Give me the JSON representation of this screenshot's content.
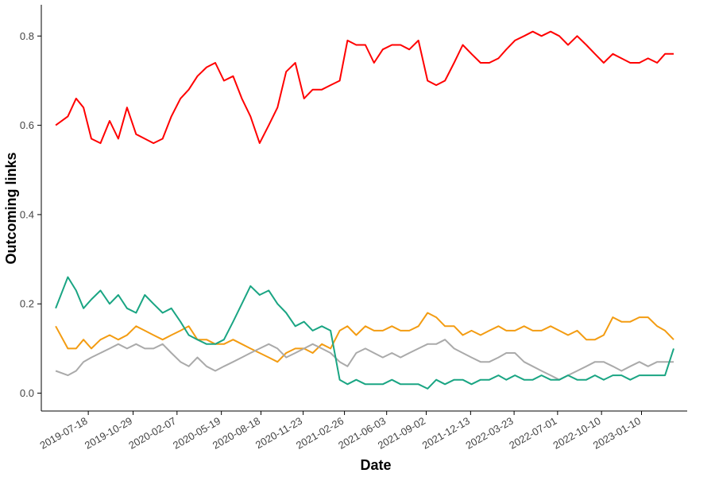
{
  "chart_data": {
    "type": "line",
    "xlabel": "Date",
    "ylabel": "Outcoming links",
    "x_ticks": [
      "2019-07-18",
      "2019-10-29",
      "2020-02-07",
      "2020-05-19",
      "2020-08-18",
      "2020-11-23",
      "2021-02-26",
      "2021-06-03",
      "2021-09-02",
      "2021-12-13",
      "2022-03-23",
      "2022-07-01",
      "2022-10-10",
      "2023-01-10"
    ],
    "y_ticks": [
      0.0,
      0.2,
      0.4,
      0.6,
      0.8
    ],
    "ylim": [
      -0.04,
      0.87
    ],
    "xlim": [
      "2019-04-01",
      "2023-04-25"
    ],
    "grid": false,
    "series": [
      {
        "color": "#ff0000",
        "x": [
          "2019-05-04",
          "2019-06-01",
          "2019-06-20",
          "2019-07-07",
          "2019-07-25",
          "2019-08-15",
          "2019-09-05",
          "2019-09-25",
          "2019-10-15",
          "2019-11-05",
          "2019-11-25",
          "2019-12-15",
          "2020-01-05",
          "2020-01-25",
          "2020-02-15",
          "2020-03-05",
          "2020-03-25",
          "2020-04-15",
          "2020-05-05",
          "2020-05-25",
          "2020-06-15",
          "2020-07-05",
          "2020-07-25",
          "2020-08-15",
          "2020-09-05",
          "2020-09-25",
          "2020-10-15",
          "2020-11-05",
          "2020-11-25",
          "2020-12-15",
          "2021-01-05",
          "2021-01-25",
          "2021-02-15",
          "2021-03-05",
          "2021-03-25",
          "2021-04-15",
          "2021-05-05",
          "2021-05-25",
          "2021-06-15",
          "2021-07-05",
          "2021-07-25",
          "2021-08-15",
          "2021-09-05",
          "2021-09-25",
          "2021-10-15",
          "2021-11-05",
          "2021-11-25",
          "2021-12-15",
          "2022-01-05",
          "2022-01-25",
          "2022-02-15",
          "2022-03-05",
          "2022-03-25",
          "2022-04-15",
          "2022-05-05",
          "2022-05-25",
          "2022-06-15",
          "2022-07-05",
          "2022-07-25",
          "2022-08-15",
          "2022-09-05",
          "2022-09-25",
          "2022-10-15",
          "2022-11-05",
          "2022-11-25",
          "2022-12-15",
          "2023-01-05",
          "2023-01-25",
          "2023-02-15",
          "2023-03-05",
          "2023-03-25"
        ],
        "values": [
          0.6,
          0.62,
          0.66,
          0.64,
          0.57,
          0.56,
          0.61,
          0.57,
          0.64,
          0.58,
          0.57,
          0.56,
          0.57,
          0.62,
          0.66,
          0.68,
          0.71,
          0.73,
          0.74,
          0.7,
          0.71,
          0.66,
          0.62,
          0.56,
          0.6,
          0.64,
          0.72,
          0.74,
          0.66,
          0.68,
          0.68,
          0.69,
          0.7,
          0.79,
          0.78,
          0.78,
          0.74,
          0.77,
          0.78,
          0.78,
          0.77,
          0.79,
          0.7,
          0.69,
          0.7,
          0.74,
          0.78,
          0.76,
          0.74,
          0.74,
          0.75,
          0.77,
          0.79,
          0.8,
          0.81,
          0.8,
          0.81,
          0.8,
          0.78,
          0.8,
          0.78,
          0.76,
          0.74,
          0.76,
          0.75,
          0.74,
          0.74,
          0.75,
          0.74,
          0.76,
          0.76
        ]
      },
      {
        "color": "#f39c12",
        "x": [
          "2019-05-04",
          "2019-06-01",
          "2019-06-20",
          "2019-07-07",
          "2019-07-25",
          "2019-08-15",
          "2019-09-05",
          "2019-09-25",
          "2019-10-15",
          "2019-11-05",
          "2019-11-25",
          "2019-12-15",
          "2020-01-05",
          "2020-01-25",
          "2020-02-15",
          "2020-03-05",
          "2020-03-25",
          "2020-04-15",
          "2020-05-05",
          "2020-05-25",
          "2020-06-15",
          "2020-07-05",
          "2020-07-25",
          "2020-08-15",
          "2020-09-05",
          "2020-09-25",
          "2020-10-15",
          "2020-11-05",
          "2020-11-25",
          "2020-12-15",
          "2021-01-05",
          "2021-01-25",
          "2021-02-15",
          "2021-03-05",
          "2021-03-25",
          "2021-04-15",
          "2021-05-05",
          "2021-05-25",
          "2021-06-15",
          "2021-07-05",
          "2021-07-25",
          "2021-08-15",
          "2021-09-05",
          "2021-09-25",
          "2021-10-15",
          "2021-11-05",
          "2021-11-25",
          "2021-12-15",
          "2022-01-05",
          "2022-01-25",
          "2022-02-15",
          "2022-03-05",
          "2022-03-25",
          "2022-04-15",
          "2022-05-05",
          "2022-05-25",
          "2022-06-15",
          "2022-07-05",
          "2022-07-25",
          "2022-08-15",
          "2022-09-05",
          "2022-09-25",
          "2022-10-15",
          "2022-11-05",
          "2022-11-25",
          "2022-12-15",
          "2023-01-05",
          "2023-01-25",
          "2023-02-15",
          "2023-03-05",
          "2023-03-25"
        ],
        "values": [
          0.15,
          0.1,
          0.1,
          0.12,
          0.1,
          0.12,
          0.13,
          0.12,
          0.13,
          0.15,
          0.14,
          0.13,
          0.12,
          0.13,
          0.14,
          0.15,
          0.12,
          0.12,
          0.11,
          0.11,
          0.12,
          0.11,
          0.1,
          0.09,
          0.08,
          0.07,
          0.09,
          0.1,
          0.1,
          0.09,
          0.11,
          0.1,
          0.14,
          0.15,
          0.13,
          0.15,
          0.14,
          0.14,
          0.15,
          0.14,
          0.14,
          0.15,
          0.18,
          0.17,
          0.15,
          0.15,
          0.13,
          0.14,
          0.13,
          0.14,
          0.15,
          0.14,
          0.14,
          0.15,
          0.14,
          0.14,
          0.15,
          0.14,
          0.13,
          0.14,
          0.12,
          0.12,
          0.13,
          0.17,
          0.16,
          0.16,
          0.17,
          0.17,
          0.15,
          0.14,
          0.12
        ]
      },
      {
        "color": "#aaaaaa",
        "x": [
          "2019-05-04",
          "2019-06-01",
          "2019-06-20",
          "2019-07-07",
          "2019-07-25",
          "2019-08-15",
          "2019-09-05",
          "2019-09-25",
          "2019-10-15",
          "2019-11-05",
          "2019-11-25",
          "2019-12-15",
          "2020-01-05",
          "2020-01-25",
          "2020-02-15",
          "2020-03-05",
          "2020-03-25",
          "2020-04-15",
          "2020-05-05",
          "2020-05-25",
          "2020-06-15",
          "2020-07-05",
          "2020-07-25",
          "2020-08-15",
          "2020-09-05",
          "2020-09-25",
          "2020-10-15",
          "2020-11-05",
          "2020-11-25",
          "2020-12-15",
          "2021-01-05",
          "2021-01-25",
          "2021-02-15",
          "2021-03-05",
          "2021-03-25",
          "2021-04-15",
          "2021-05-05",
          "2021-05-25",
          "2021-06-15",
          "2021-07-05",
          "2021-07-25",
          "2021-08-15",
          "2021-09-05",
          "2021-09-25",
          "2021-10-15",
          "2021-11-05",
          "2021-11-25",
          "2021-12-15",
          "2022-01-05",
          "2022-01-25",
          "2022-02-15",
          "2022-03-05",
          "2022-03-25",
          "2022-04-15",
          "2022-05-05",
          "2022-05-25",
          "2022-06-15",
          "2022-07-05",
          "2022-07-25",
          "2022-08-15",
          "2022-09-05",
          "2022-09-25",
          "2022-10-15",
          "2022-11-05",
          "2022-11-25",
          "2022-12-15",
          "2023-01-05",
          "2023-01-25",
          "2023-02-15",
          "2023-03-05",
          "2023-03-25"
        ],
        "values": [
          0.05,
          0.04,
          0.05,
          0.07,
          0.08,
          0.09,
          0.1,
          0.11,
          0.1,
          0.11,
          0.1,
          0.1,
          0.11,
          0.09,
          0.07,
          0.06,
          0.08,
          0.06,
          0.05,
          0.06,
          0.07,
          0.08,
          0.09,
          0.1,
          0.11,
          0.1,
          0.08,
          0.09,
          0.1,
          0.11,
          0.1,
          0.09,
          0.07,
          0.06,
          0.09,
          0.1,
          0.09,
          0.08,
          0.09,
          0.08,
          0.09,
          0.1,
          0.11,
          0.11,
          0.12,
          0.1,
          0.09,
          0.08,
          0.07,
          0.07,
          0.08,
          0.09,
          0.09,
          0.07,
          0.06,
          0.05,
          0.04,
          0.03,
          0.04,
          0.05,
          0.06,
          0.07,
          0.07,
          0.06,
          0.05,
          0.06,
          0.07,
          0.06,
          0.07,
          0.07,
          0.07
        ]
      },
      {
        "color": "#1aa583",
        "x": [
          "2019-05-04",
          "2019-06-01",
          "2019-06-20",
          "2019-07-07",
          "2019-07-25",
          "2019-08-15",
          "2019-09-05",
          "2019-09-25",
          "2019-10-15",
          "2019-11-05",
          "2019-11-25",
          "2019-12-15",
          "2020-01-05",
          "2020-01-25",
          "2020-02-15",
          "2020-03-05",
          "2020-03-25",
          "2020-04-15",
          "2020-05-05",
          "2020-05-25",
          "2020-06-15",
          "2020-07-05",
          "2020-07-25",
          "2020-08-15",
          "2020-09-05",
          "2020-09-25",
          "2020-10-15",
          "2020-11-05",
          "2020-11-25",
          "2020-12-15",
          "2021-01-05",
          "2021-01-25",
          "2021-02-15",
          "2021-03-05",
          "2021-03-25",
          "2021-04-15",
          "2021-05-05",
          "2021-05-25",
          "2021-06-15",
          "2021-07-05",
          "2021-07-25",
          "2021-08-15",
          "2021-09-05",
          "2021-09-25",
          "2021-10-15",
          "2021-11-05",
          "2021-11-25",
          "2021-12-15",
          "2022-01-05",
          "2022-01-25",
          "2022-02-15",
          "2022-03-05",
          "2022-03-25",
          "2022-04-15",
          "2022-05-05",
          "2022-05-25",
          "2022-06-15",
          "2022-07-05",
          "2022-07-25",
          "2022-08-15",
          "2022-09-05",
          "2022-09-25",
          "2022-10-15",
          "2022-11-05",
          "2022-11-25",
          "2022-12-15",
          "2023-01-05",
          "2023-01-25",
          "2023-02-15",
          "2023-03-05",
          "2023-03-25"
        ],
        "values": [
          0.19,
          0.26,
          0.23,
          0.19,
          0.21,
          0.23,
          0.2,
          0.22,
          0.19,
          0.18,
          0.22,
          0.2,
          0.18,
          0.19,
          0.16,
          0.13,
          0.12,
          0.11,
          0.11,
          0.12,
          0.16,
          0.2,
          0.24,
          0.22,
          0.23,
          0.2,
          0.18,
          0.15,
          0.16,
          0.14,
          0.15,
          0.14,
          0.03,
          0.02,
          0.03,
          0.02,
          0.02,
          0.02,
          0.03,
          0.02,
          0.02,
          0.02,
          0.01,
          0.03,
          0.02,
          0.03,
          0.03,
          0.02,
          0.03,
          0.03,
          0.04,
          0.03,
          0.04,
          0.03,
          0.03,
          0.04,
          0.03,
          0.03,
          0.04,
          0.03,
          0.03,
          0.04,
          0.03,
          0.04,
          0.04,
          0.03,
          0.04,
          0.04,
          0.04,
          0.04,
          0.1
        ]
      }
    ]
  }
}
